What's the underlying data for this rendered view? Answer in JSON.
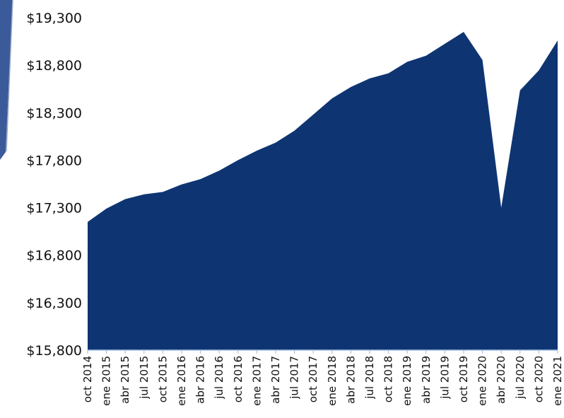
{
  "chart_data": {
    "type": "area",
    "title": "",
    "xlabel": "",
    "ylabel": "",
    "ylim": [
      15800,
      19300
    ],
    "yticks": [
      "$15,800",
      "$16,300",
      "$16,800",
      "$17,300",
      "$17,800",
      "$18,300",
      "$18,800",
      "$19,300"
    ],
    "ytick_values": [
      15800,
      16300,
      16800,
      17300,
      17800,
      18300,
      18800,
      19300
    ],
    "x": [
      "oct 2014",
      "ene 2015",
      "abr 2015",
      "jul 2015",
      "oct 2015",
      "ene 2016",
      "abr 2016",
      "jul 2016",
      "oct 2016",
      "ene 2017",
      "abr 2017",
      "jul 2017",
      "oct 2017",
      "ene 2018",
      "abr 2018",
      "jul 2018",
      "oct 2018",
      "ene 2019",
      "abr 2019",
      "jul 2019",
      "oct 2019",
      "ene 2020",
      "abr 2020",
      "jul 2020",
      "oct 2020",
      "ene 2021"
    ],
    "values": [
      17150,
      17290,
      17390,
      17440,
      17465,
      17545,
      17600,
      17690,
      17800,
      17900,
      17985,
      18110,
      18280,
      18450,
      18570,
      18660,
      18715,
      18835,
      18900,
      19025,
      19150,
      18855,
      17300,
      18535,
      18745,
      19060
    ],
    "fill_color": "#0e3572",
    "grid": false,
    "legend": "none"
  }
}
